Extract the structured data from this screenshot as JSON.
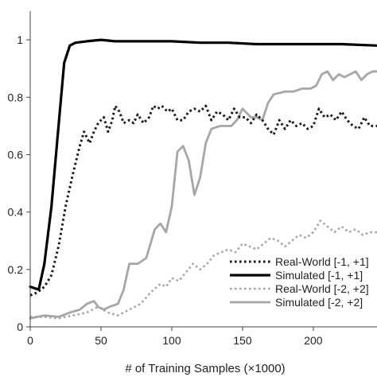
{
  "chart_data": {
    "type": "line",
    "xlabel": "# of Training Samples (×1000)",
    "ylabel": "",
    "title": "",
    "xlim": [
      0,
      245
    ],
    "ylim": [
      0,
      1.1
    ],
    "x_ticks": [
      0,
      50,
      100,
      150,
      200
    ],
    "x_tick_labels": [
      "0",
      "50",
      "100",
      "150",
      "200"
    ],
    "y_ticks": [
      0,
      0.2,
      0.4,
      0.6,
      0.8,
      1
    ],
    "y_tick_labels": [
      "0",
      "0.2",
      "0.4",
      "0.6",
      "0.8",
      "1"
    ],
    "grid": false,
    "legend_position": "bottom-right",
    "series": [
      {
        "name": "Real-World [-1, +1]",
        "color": "#1a1a1a",
        "dash": "dotted",
        "points": [
          [
            0,
            0.11
          ],
          [
            5,
            0.12
          ],
          [
            10,
            0.14
          ],
          [
            15,
            0.18
          ],
          [
            20,
            0.28
          ],
          [
            25,
            0.42
          ],
          [
            30,
            0.53
          ],
          [
            35,
            0.63
          ],
          [
            38,
            0.68
          ],
          [
            42,
            0.64
          ],
          [
            45,
            0.68
          ],
          [
            48,
            0.71
          ],
          [
            52,
            0.73
          ],
          [
            55,
            0.68
          ],
          [
            58,
            0.72
          ],
          [
            60,
            0.77
          ],
          [
            63,
            0.75
          ],
          [
            66,
            0.71
          ],
          [
            70,
            0.72
          ],
          [
            73,
            0.71
          ],
          [
            76,
            0.74
          ],
          [
            80,
            0.71
          ],
          [
            84,
            0.73
          ],
          [
            87,
            0.77
          ],
          [
            90,
            0.76
          ],
          [
            93,
            0.77
          ],
          [
            97,
            0.75
          ],
          [
            100,
            0.76
          ],
          [
            104,
            0.72
          ],
          [
            108,
            0.72
          ],
          [
            112,
            0.75
          ],
          [
            116,
            0.76
          ],
          [
            120,
            0.75
          ],
          [
            124,
            0.77
          ],
          [
            128,
            0.72
          ],
          [
            132,
            0.75
          ],
          [
            136,
            0.74
          ],
          [
            140,
            0.72
          ],
          [
            144,
            0.76
          ],
          [
            148,
            0.73
          ],
          [
            152,
            0.73
          ],
          [
            156,
            0.71
          ],
          [
            160,
            0.74
          ],
          [
            164,
            0.72
          ],
          [
            168,
            0.69
          ],
          [
            172,
            0.67
          ],
          [
            176,
            0.72
          ],
          [
            180,
            0.69
          ],
          [
            184,
            0.72
          ],
          [
            188,
            0.7
          ],
          [
            192,
            0.71
          ],
          [
            196,
            0.69
          ],
          [
            200,
            0.7
          ],
          [
            204,
            0.76
          ],
          [
            208,
            0.73
          ],
          [
            212,
            0.74
          ],
          [
            216,
            0.72
          ],
          [
            220,
            0.75
          ],
          [
            224,
            0.72
          ],
          [
            228,
            0.7
          ],
          [
            232,
            0.69
          ],
          [
            236,
            0.73
          ],
          [
            240,
            0.7
          ],
          [
            245,
            0.7
          ]
        ]
      },
      {
        "name": "Simulated [-1, +1]",
        "color": "#000000",
        "dash": "solid",
        "points": [
          [
            0,
            0.14
          ],
          [
            6,
            0.13
          ],
          [
            10,
            0.22
          ],
          [
            15,
            0.42
          ],
          [
            20,
            0.7
          ],
          [
            24,
            0.92
          ],
          [
            28,
            0.98
          ],
          [
            32,
            0.99
          ],
          [
            40,
            0.995
          ],
          [
            50,
            1.0
          ],
          [
            60,
            0.995
          ],
          [
            80,
            0.995
          ],
          [
            100,
            0.995
          ],
          [
            120,
            0.99
          ],
          [
            140,
            0.99
          ],
          [
            160,
            0.985
          ],
          [
            180,
            0.985
          ],
          [
            200,
            0.985
          ],
          [
            220,
            0.985
          ],
          [
            245,
            0.98
          ]
        ]
      },
      {
        "name": "Real-World [-2, +2]",
        "color": "#a6a6a6",
        "dash": "dotted",
        "points": [
          [
            0,
            0.035
          ],
          [
            10,
            0.035
          ],
          [
            20,
            0.03
          ],
          [
            30,
            0.04
          ],
          [
            40,
            0.05
          ],
          [
            48,
            0.07
          ],
          [
            55,
            0.05
          ],
          [
            62,
            0.04
          ],
          [
            70,
            0.06
          ],
          [
            78,
            0.08
          ],
          [
            85,
            0.12
          ],
          [
            92,
            0.15
          ],
          [
            96,
            0.14
          ],
          [
            100,
            0.17
          ],
          [
            105,
            0.16
          ],
          [
            110,
            0.19
          ],
          [
            115,
            0.22
          ],
          [
            120,
            0.2
          ],
          [
            125,
            0.22
          ],
          [
            130,
            0.25
          ],
          [
            135,
            0.26
          ],
          [
            140,
            0.27
          ],
          [
            145,
            0.26
          ],
          [
            150,
            0.29
          ],
          [
            155,
            0.28
          ],
          [
            160,
            0.27
          ],
          [
            165,
            0.29
          ],
          [
            170,
            0.31
          ],
          [
            175,
            0.3
          ],
          [
            180,
            0.28
          ],
          [
            185,
            0.3
          ],
          [
            190,
            0.32
          ],
          [
            195,
            0.31
          ],
          [
            200,
            0.33
          ],
          [
            205,
            0.37
          ],
          [
            210,
            0.35
          ],
          [
            215,
            0.33
          ],
          [
            220,
            0.35
          ],
          [
            225,
            0.33
          ],
          [
            230,
            0.34
          ],
          [
            235,
            0.32
          ],
          [
            240,
            0.33
          ],
          [
            245,
            0.33
          ]
        ]
      },
      {
        "name": "Simulated [-2, +2]",
        "color": "#a6a6a6",
        "dash": "solid",
        "points": [
          [
            0,
            0.03
          ],
          [
            10,
            0.04
          ],
          [
            20,
            0.035
          ],
          [
            28,
            0.05
          ],
          [
            35,
            0.06
          ],
          [
            40,
            0.08
          ],
          [
            45,
            0.09
          ],
          [
            48,
            0.07
          ],
          [
            52,
            0.06
          ],
          [
            56,
            0.07
          ],
          [
            62,
            0.08
          ],
          [
            66,
            0.13
          ],
          [
            70,
            0.22
          ],
          [
            76,
            0.22
          ],
          [
            82,
            0.24
          ],
          [
            88,
            0.34
          ],
          [
            92,
            0.36
          ],
          [
            96,
            0.33
          ],
          [
            100,
            0.42
          ],
          [
            104,
            0.61
          ],
          [
            108,
            0.63
          ],
          [
            112,
            0.58
          ],
          [
            116,
            0.46
          ],
          [
            120,
            0.52
          ],
          [
            124,
            0.64
          ],
          [
            128,
            0.69
          ],
          [
            134,
            0.7
          ],
          [
            142,
            0.7
          ],
          [
            146,
            0.72
          ],
          [
            150,
            0.76
          ],
          [
            156,
            0.73
          ],
          [
            160,
            0.73
          ],
          [
            164,
            0.72
          ],
          [
            168,
            0.78
          ],
          [
            172,
            0.81
          ],
          [
            180,
            0.82
          ],
          [
            186,
            0.82
          ],
          [
            192,
            0.83
          ],
          [
            198,
            0.83
          ],
          [
            202,
            0.84
          ],
          [
            206,
            0.88
          ],
          [
            210,
            0.89
          ],
          [
            214,
            0.86
          ],
          [
            218,
            0.88
          ],
          [
            222,
            0.87
          ],
          [
            226,
            0.88
          ],
          [
            230,
            0.89
          ],
          [
            234,
            0.86
          ],
          [
            238,
            0.88
          ],
          [
            242,
            0.89
          ],
          [
            245,
            0.89
          ]
        ]
      }
    ]
  }
}
